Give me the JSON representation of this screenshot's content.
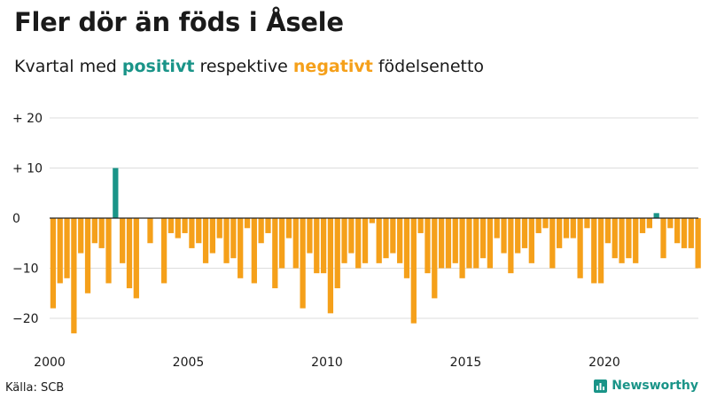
{
  "title": "Fler dör än föds i Åsele",
  "subtitle": {
    "prefix": "Kvartal med ",
    "positive": "positivt",
    "middle": " respektive ",
    "negative": "negativt",
    "suffix": " födelsenetto"
  },
  "source": "Källa: SCB",
  "brand": {
    "name": "Newsworthy",
    "icon": "bar-chart-icon"
  },
  "colors": {
    "positive": "#1a9488",
    "negative": "#f5a01a",
    "text": "#1a1a1a",
    "grid": "#dddddd"
  },
  "chart_data": {
    "type": "bar",
    "title": "Fler dör än föds i Åsele",
    "subtitle": "Kvartal med positivt respektive negativt födelsenetto",
    "x_start": 2000,
    "x_step": 0.25,
    "x_ticks": [
      2000,
      2005,
      2010,
      2015,
      2020
    ],
    "x_tick_labels": [
      "2000",
      "2005",
      "2010",
      "2015",
      "2020"
    ],
    "y_ticks": [
      20,
      10,
      0,
      -10,
      -20
    ],
    "y_tick_labels": [
      "+ 20",
      "+ 10",
      "0",
      "−10",
      "−20"
    ],
    "ylim": [
      -25,
      20
    ],
    "grid": true,
    "values": [
      -18,
      -13,
      -12,
      -23,
      -7,
      -15,
      -5,
      -6,
      -13,
      10,
      -9,
      -14,
      -16,
      0,
      -5,
      0,
      -13,
      -3,
      -4,
      -3,
      -6,
      -5,
      -9,
      -7,
      -4,
      -9,
      -8,
      -12,
      -2,
      -13,
      -5,
      -3,
      -14,
      -10,
      -4,
      -10,
      -18,
      -7,
      -11,
      -11,
      -19,
      -14,
      -9,
      -7,
      -10,
      -9,
      -1,
      -9,
      -8,
      -7,
      -9,
      -12,
      -21,
      -3,
      -11,
      -16,
      -10,
      -10,
      -9,
      -12,
      -10,
      -10,
      -8,
      -10,
      -4,
      -7,
      -11,
      -7,
      -6,
      -9,
      -3,
      -2,
      -10,
      -6,
      -4,
      -4,
      -12,
      -2,
      -13,
      -13,
      -5,
      -8,
      -9,
      -8,
      -9,
      -3,
      -2,
      1,
      -8,
      -2,
      -5,
      -6,
      -6,
      -10
    ]
  }
}
